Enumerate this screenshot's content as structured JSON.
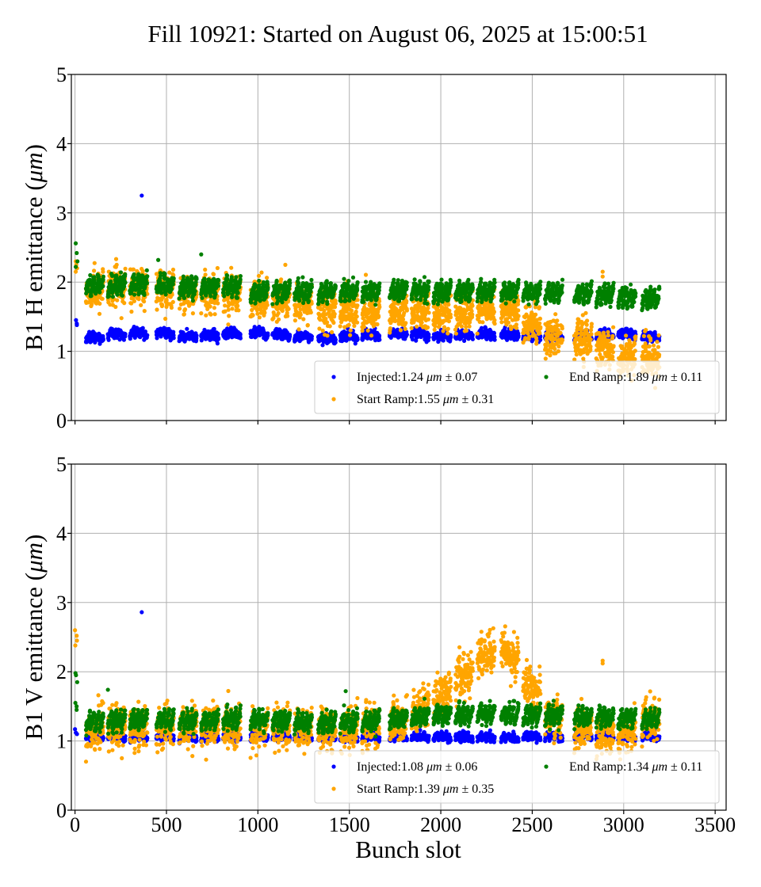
{
  "figure": {
    "title": "Fill 10921: Started on August 06, 2025 at 15:00:51"
  },
  "chart_data": [
    {
      "type": "scatter",
      "panel": "top",
      "title": "Fill 10921: Started on August 06, 2025 at 15:00:51",
      "xlabel": "",
      "ylabel_prefix": "B1 H emittance (",
      "ylabel_unit": "μm",
      "ylabel_suffix": ")",
      "xlim": [
        -20,
        3560
      ],
      "ylim": [
        0,
        5
      ],
      "xticks": [
        0,
        500,
        1000,
        1500,
        2000,
        2500,
        3000,
        3500
      ],
      "xtick_labels": [],
      "yticks": [
        0,
        1,
        2,
        3,
        4,
        5
      ],
      "ytick_labels": [
        "0",
        "1",
        "2",
        "3",
        "4",
        "5"
      ],
      "grid": true,
      "legend_position": "lower-right",
      "legend_columns": 2,
      "colors": {
        "Injected": "#0000ff",
        "Start Ramp": "#ffa500",
        "End Ramp": "#008000"
      },
      "legend": [
        {
          "label": "Injected:1.24 ",
          "unit": "μm",
          "stat": " ± 0.07",
          "color": "#0000ff"
        },
        {
          "label": "Start Ramp:1.55 ",
          "unit": "μm",
          "stat": " ± 0.31",
          "color": "#ffa500"
        },
        {
          "label": "End Ramp:1.89 ",
          "unit": "μm",
          "stat": " ± 0.11",
          "color": "#008000"
        }
      ],
      "bunch_trains": {
        "pilot_slots": [
          0,
          12
        ],
        "train_starts": [
          60,
          180,
          300,
          445,
          570,
          690,
          810,
          960,
          1080,
          1200,
          1330,
          1450,
          1570,
          1720,
          1840,
          1960,
          2080,
          2200,
          2330,
          2450,
          2570,
          2730,
          2850,
          2970,
          3100
        ],
        "bunches_per_train": 96,
        "last_slot": 3240
      },
      "series": [
        {
          "name": "Injected",
          "color": "#0000ff",
          "mean": 1.24,
          "std": 0.07,
          "pilot_values": [
            1.45,
            1.4,
            1.38
          ],
          "train_levels": [
            1.2,
            1.25,
            1.27,
            1.28,
            1.22,
            1.23,
            1.26,
            1.27,
            1.26,
            1.23,
            1.2,
            1.22,
            1.24,
            1.26,
            1.25,
            1.23,
            1.24,
            1.26,
            1.25,
            1.24,
            1.22,
            1.23,
            1.25,
            1.27,
            1.22
          ],
          "outliers": [
            {
              "x": 365,
              "y": 3.25
            }
          ]
        },
        {
          "name": "Start Ramp",
          "color": "#ffa500",
          "mean": 1.55,
          "std": 0.31,
          "pilot_values": [
            2.3,
            2.25,
            2.2,
            2.15
          ],
          "train_levels": [
            1.88,
            1.9,
            1.92,
            1.92,
            1.85,
            1.85,
            1.88,
            1.75,
            1.72,
            1.7,
            1.62,
            1.6,
            1.58,
            1.58,
            1.58,
            1.58,
            1.55,
            1.62,
            1.65,
            1.45,
            1.25,
            1.2,
            1.05,
            0.9,
            0.92
          ],
          "outliers": [
            {
              "x": 1150,
              "y": 2.25
            },
            {
              "x": 2885,
              "y": 2.15
            },
            {
              "x": 2885,
              "y": 2.08
            }
          ]
        },
        {
          "name": "End Ramp",
          "color": "#008000",
          "mean": 1.89,
          "std": 0.11,
          "pilot_values": [
            2.56,
            2.42,
            2.3,
            2.22
          ],
          "train_levels": [
            1.95,
            1.95,
            1.97,
            1.97,
            1.92,
            1.93,
            1.96,
            1.85,
            1.88,
            1.87,
            1.86,
            1.87,
            1.86,
            1.88,
            1.88,
            1.86,
            1.87,
            1.88,
            1.87,
            1.85,
            1.86,
            1.83,
            1.83,
            1.79,
            1.77
          ],
          "outliers": [
            {
              "x": 690,
              "y": 2.4
            },
            {
              "x": 455,
              "y": 2.32
            }
          ]
        }
      ]
    },
    {
      "type": "scatter",
      "panel": "bottom",
      "xlabel": "Bunch slot",
      "ylabel_prefix": "B1 V emittance (",
      "ylabel_unit": "μm",
      "ylabel_suffix": ")",
      "xlim": [
        -20,
        3560
      ],
      "ylim": [
        0,
        5
      ],
      "xticks": [
        0,
        500,
        1000,
        1500,
        2000,
        2500,
        3000,
        3500
      ],
      "xtick_labels": [
        "0",
        "500",
        "1000",
        "1500",
        "2000",
        "2500",
        "3000",
        "3500"
      ],
      "yticks": [
        0,
        1,
        2,
        3,
        4,
        5
      ],
      "ytick_labels": [
        "0",
        "1",
        "2",
        "3",
        "4",
        "5"
      ],
      "grid": true,
      "legend_position": "lower-right",
      "legend_columns": 2,
      "colors": {
        "Injected": "#0000ff",
        "Start Ramp": "#ffa500",
        "End Ramp": "#008000"
      },
      "legend": [
        {
          "label": "Injected:1.08 ",
          "unit": "μm",
          "stat": " ± 0.06",
          "color": "#0000ff"
        },
        {
          "label": "Start Ramp:1.39 ",
          "unit": "μm",
          "stat": " ± 0.35",
          "color": "#ffa500"
        },
        {
          "label": "End Ramp:1.34 ",
          "unit": "μm",
          "stat": " ± 0.11",
          "color": "#008000"
        }
      ],
      "bunch_trains": {
        "pilot_slots": [
          0,
          12
        ],
        "train_starts": [
          60,
          180,
          300,
          445,
          570,
          690,
          810,
          960,
          1080,
          1200,
          1330,
          1450,
          1570,
          1720,
          1840,
          1960,
          2080,
          2200,
          2330,
          2450,
          2570,
          2730,
          2850,
          2970,
          3100
        ],
        "bunches_per_train": 96,
        "last_slot": 3240
      },
      "series": [
        {
          "name": "Injected",
          "color": "#0000ff",
          "mean": 1.08,
          "std": 0.06,
          "pilot_values": [
            1.17,
            1.12,
            1.1
          ],
          "train_levels": [
            1.08,
            1.08,
            1.07,
            1.08,
            1.07,
            1.06,
            1.07,
            1.08,
            1.08,
            1.07,
            1.05,
            1.06,
            1.07,
            1.07,
            1.07,
            1.07,
            1.07,
            1.06,
            1.06,
            1.07,
            1.08,
            1.09,
            1.08,
            1.06,
            1.08
          ],
          "outliers": [
            {
              "x": 365,
              "y": 2.86
            }
          ]
        },
        {
          "name": "Start Ramp",
          "color": "#ffa500",
          "mean": 1.39,
          "std": 0.35,
          "pilot_values": [
            2.6,
            2.52,
            2.45,
            2.38
          ],
          "train_levels": [
            1.18,
            1.2,
            1.2,
            1.22,
            1.2,
            1.22,
            1.22,
            1.2,
            1.2,
            1.18,
            1.15,
            1.17,
            1.2,
            1.28,
            1.42,
            1.65,
            1.9,
            2.25,
            2.35,
            1.85,
            1.4,
            1.18,
            1.12,
            1.05,
            1.28
          ],
          "outliers": [
            {
              "x": 2885,
              "y": 2.16
            },
            {
              "x": 2885,
              "y": 2.12
            }
          ]
        },
        {
          "name": "End Ramp",
          "color": "#008000",
          "mean": 1.34,
          "std": 0.11,
          "pilot_values": [
            1.98,
            1.95,
            1.85,
            1.55,
            1.5,
            1.45
          ],
          "train_levels": [
            1.28,
            1.3,
            1.32,
            1.32,
            1.3,
            1.3,
            1.32,
            1.32,
            1.3,
            1.28,
            1.25,
            1.28,
            1.28,
            1.32,
            1.35,
            1.38,
            1.38,
            1.4,
            1.4,
            1.38,
            1.38,
            1.35,
            1.35,
            1.33,
            1.32
          ],
          "outliers": [
            {
              "x": 180,
              "y": 1.74
            },
            {
              "x": 1480,
              "y": 1.72
            }
          ]
        }
      ]
    }
  ]
}
